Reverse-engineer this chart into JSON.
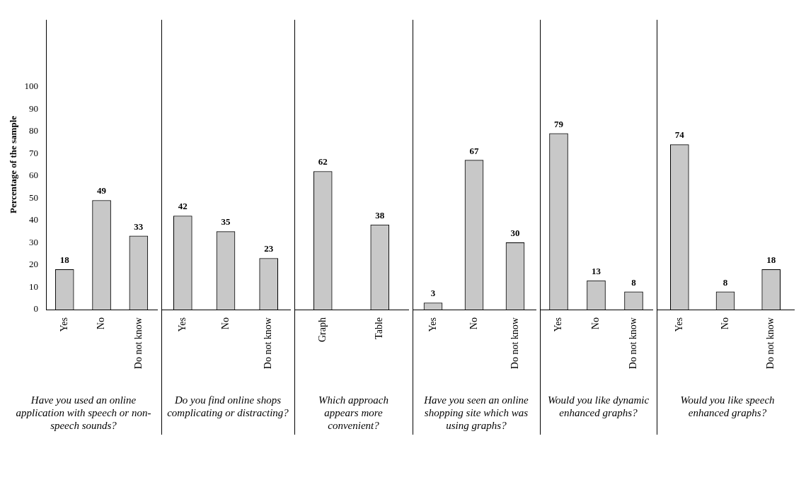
{
  "chart_data": [
    {
      "type": "bar",
      "categories": [
        "Yes",
        "No",
        "Do not know"
      ],
      "values": [
        18,
        49,
        33
      ],
      "color": "#c8c8c8",
      "xlabel": "Have you used an online application  with speech or non-speech sounds?",
      "ylabel": "Percentage of the sample",
      "ylim": [
        0,
        130
      ],
      "yticks": [
        0,
        10,
        20,
        30,
        40,
        50,
        60,
        70,
        80,
        90,
        100
      ],
      "data_labels": true,
      "grid": false
    },
    {
      "type": "bar",
      "categories": [
        "Yes",
        "No",
        "Do not know"
      ],
      "values": [
        42,
        35,
        23
      ],
      "color": "#c8c8c8",
      "xlabel": "Do you find online shops complicating or distracting?",
      "ylim": [
        0,
        130
      ],
      "data_labels": true,
      "grid": false,
      "tick_labels": "x"
    },
    {
      "type": "bar",
      "categories": [
        "Graph",
        "Table"
      ],
      "values": [
        62,
        38
      ],
      "color": "#c8c8c8",
      "xlabel": "Which approach appears more convenient?",
      "ylim": [
        0,
        130
      ],
      "data_labels": true,
      "grid": false,
      "tick_labels": "x"
    },
    {
      "type": "bar",
      "categories": [
        "Yes",
        "No",
        "Do not know"
      ],
      "values": [
        3,
        67,
        30
      ],
      "color": "#c8c8c8",
      "xlabel": "Have you seen an online shopping site which was using graphs?",
      "ylim": [
        0,
        130
      ],
      "data_labels": true,
      "grid": false,
      "tick_labels": "x"
    },
    {
      "type": "bar",
      "categories": [
        "Yes",
        "No",
        "Do not know"
      ],
      "values": [
        79,
        13,
        8
      ],
      "color": "#c8c8c8",
      "xlabel": "Would you like dynamic enhanced graphs?",
      "ylim": [
        0,
        130
      ],
      "data_labels": true,
      "grid": false,
      "tick_labels": "x"
    },
    {
      "type": "bar",
      "categories": [
        "Yes",
        "No",
        "Do not know"
      ],
      "values": [
        74,
        8,
        18
      ],
      "color": "#c8c8c8",
      "xlabel": "Would you like speech enhanced graphs?",
      "ylim": [
        0,
        130
      ],
      "data_labels": true,
      "grid": false,
      "tick_labels": "x"
    }
  ]
}
